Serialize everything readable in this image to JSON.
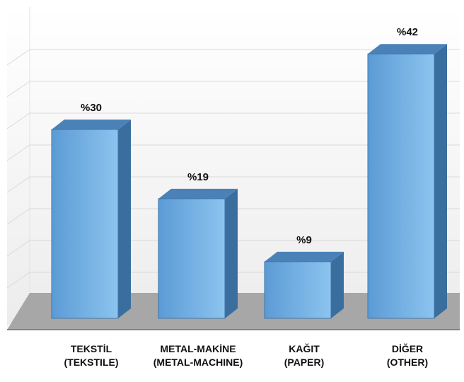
{
  "chart_data": {
    "type": "bar",
    "categories": [
      [
        "TEKSTİL",
        "(TEKSTILE)"
      ],
      [
        "METAL-MAKİNE",
        "(METAL-MACHINE)"
      ],
      [
        "KAĞIT",
        "(PAPER)"
      ],
      [
        "DİĞER",
        "(OTHER)"
      ]
    ],
    "values": [
      30,
      19,
      9,
      42
    ],
    "data_labels": [
      "%30",
      "%19",
      "%9",
      "%42"
    ],
    "ylim": [
      0,
      45
    ],
    "grid": true,
    "legend": "none",
    "colors": {
      "bar_front": "#5b9bd5",
      "bar_front_light": "#8cc4ef",
      "bar_side": "#3a6e9f",
      "bar_top": "#4a82b8",
      "floor": "#a7a7a7",
      "wall": "#f2f2f2",
      "grid": "#d9d9d9"
    }
  }
}
